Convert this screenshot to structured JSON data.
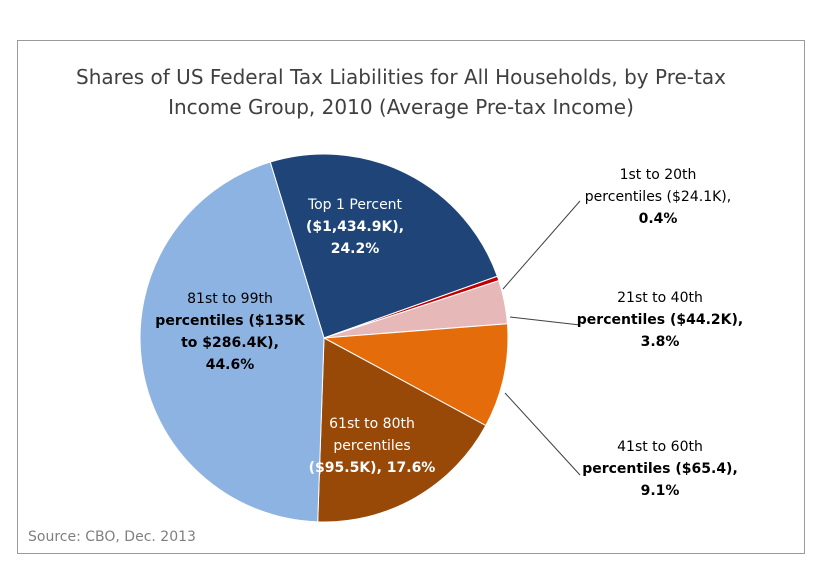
{
  "chart_data": {
    "type": "pie",
    "title_lines": [
      "Shares of US Federal Tax Liabilities for All Households, by Pre-tax",
      "Income Group, 2010 (Average Pre-tax Income)"
    ],
    "slices": [
      {
        "value": 24.2,
        "color": "#1f4478",
        "label_lines": [
          "Top 1 Percent",
          "($1,434.9K),",
          "24.2%"
        ],
        "label_color": "#ffffff"
      },
      {
        "value": 0.4,
        "color": "#c00000",
        "label_lines": [
          "1st to 20th",
          "percentiles ($24.1K),",
          "0.4%"
        ],
        "label_color": "#000000"
      },
      {
        "value": 3.8,
        "color": "#e6b8b7",
        "label_lines": [
          "21st to 40th",
          "percentiles ($44.2K),",
          "3.8%"
        ],
        "label_color": "#000000"
      },
      {
        "value": 9.1,
        "color": "#e46c0a",
        "label_lines": [
          "41st to 60th",
          "percentiles ($65.4),",
          "9.1%"
        ],
        "label_color": "#000000"
      },
      {
        "value": 17.6,
        "color": "#984807",
        "label_lines": [
          "61st to 80th",
          "percentiles",
          "($95.5K), 17.6%"
        ],
        "label_color": "#ffffff"
      },
      {
        "value": 44.6,
        "color": "#8db3e2",
        "label_lines": [
          "81st to 99th",
          "percentiles ($135K",
          "to $286.4K),",
          "44.6%"
        ],
        "label_color": "#000000"
      }
    ],
    "source": "Source: CBO, Dec. 2013"
  }
}
